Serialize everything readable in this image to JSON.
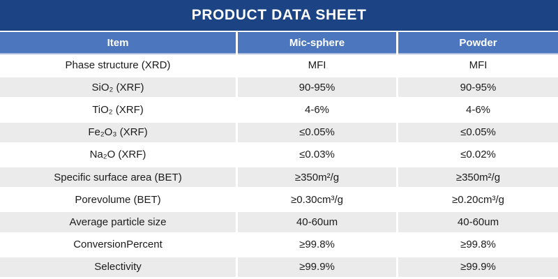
{
  "title": "PRODUCT DATA SHEET",
  "colors": {
    "title_bar": "#1c4485",
    "header_row": "#4c77be",
    "alt_row": "#ebebeb",
    "header_text": "#ffffff",
    "body_text": "#1b1b1b"
  },
  "table": {
    "columns": [
      "Item",
      "Mic-sphere",
      "Powder"
    ],
    "rows": [
      [
        "Phase structure (XRD)",
        "MFI",
        "MFI"
      ],
      [
        "SiO₂ (XRF)",
        "90-95%",
        "90-95%"
      ],
      [
        "TiO₂ (XRF)",
        "4-6%",
        "4-6%"
      ],
      [
        "Fe₂O₃ (XRF)",
        "≤0.05%",
        "≤0.05%"
      ],
      [
        "Na₂O (XRF)",
        "≤0.03%",
        "≤0.02%"
      ],
      [
        "Specific surface area (BET)",
        "≥350m²/g",
        "≥350m²/g"
      ],
      [
        "Porevolume (BET)",
        "≥0.30cm³/g",
        "≥0.20cm³/g"
      ],
      [
        "Average particle size",
        "40-60um",
        "40-60um"
      ],
      [
        "ConversionPercent",
        "≥99.8%",
        "≥99.8%"
      ],
      [
        "Selectivity",
        "≥99.9%",
        "≥99.9%"
      ]
    ]
  }
}
